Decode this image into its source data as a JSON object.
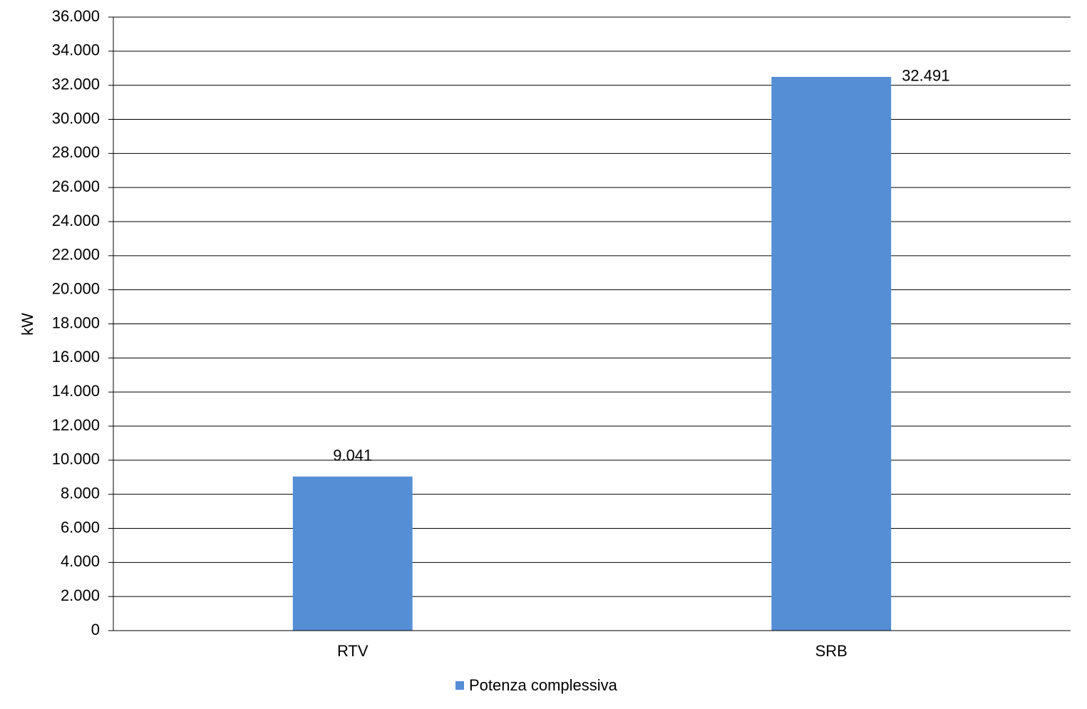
{
  "chart_data": {
    "type": "bar",
    "y_label": "kW",
    "categories": [
      "RTV",
      "SRB"
    ],
    "series": [
      {
        "name": "Potenza complessiva",
        "color": "#558ed5",
        "values": [
          9041,
          32491
        ],
        "value_labels": [
          "9.041",
          "32.491"
        ]
      }
    ],
    "ylim": [
      0,
      36000
    ],
    "yticks": [
      0,
      {
        "value": 2000,
        "label": "2.000"
      },
      {
        "value": 4000,
        "label": "4.000"
      },
      {
        "value": 6000,
        "label": "6.000"
      },
      {
        "value": 8000,
        "label": "8.000"
      },
      {
        "value": 10000,
        "label": "10.000"
      },
      {
        "value": 12000,
        "label": "12.000"
      },
      {
        "value": 14000,
        "label": "14.000"
      },
      {
        "value": 16000,
        "label": "16.000"
      },
      {
        "value": 18000,
        "label": "18.000"
      },
      {
        "value": 20000,
        "label": "20.000"
      },
      {
        "value": 22000,
        "label": "22.000"
      },
      {
        "value": 24000,
        "label": "24.000"
      },
      {
        "value": 26000,
        "label": "26.000"
      },
      {
        "value": 28000,
        "label": "28.000"
      },
      {
        "value": 30000,
        "label": "30.000"
      },
      {
        "value": 32000,
        "label": "32.000"
      },
      {
        "value": 34000,
        "label": "34.000"
      },
      {
        "value": 36000,
        "label": "36.000"
      }
    ],
    "grid": true,
    "legend": "bottom"
  }
}
